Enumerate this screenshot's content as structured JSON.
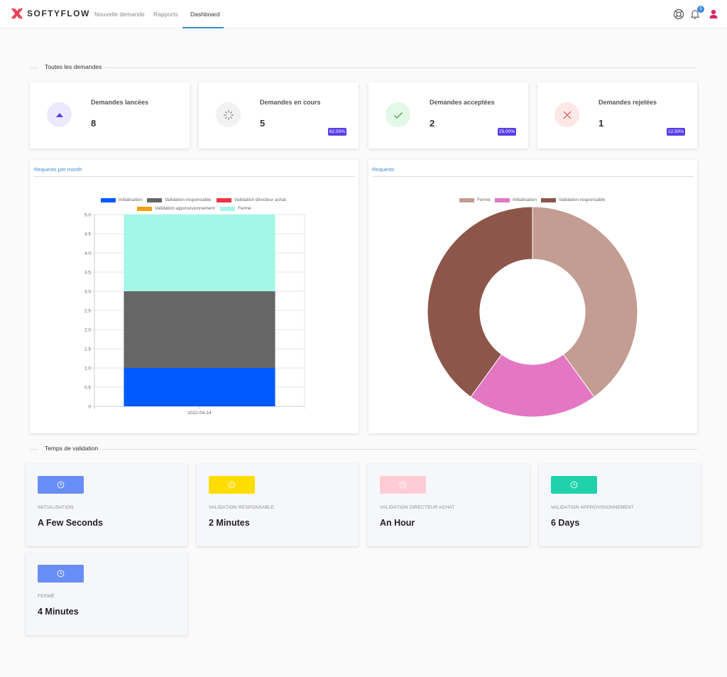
{
  "brand": {
    "name": "SOFTYFLOW"
  },
  "nav": {
    "links": [
      {
        "label": "Nouvelle demande"
      },
      {
        "label": "Rapports"
      },
      {
        "label": "Dashboard"
      }
    ],
    "notifications_count": "5"
  },
  "section_requests": {
    "title": "Toutes les demandes"
  },
  "stats": [
    {
      "label": "Demandes lancées",
      "value": "8",
      "icon": "triangle-up-icon",
      "icon_bg": "#ece9fc",
      "icon_color": "#5b3ee8"
    },
    {
      "label": "Demandes en cours",
      "value": "5",
      "badge": "62.50%",
      "icon": "spinner-icon",
      "icon_bg": "#f2f2f2",
      "icon_color": "#888888"
    },
    {
      "label": "Demandes acceptées",
      "value": "2",
      "badge": "25.00%",
      "icon": "check-icon",
      "icon_bg": "#e3f8e6",
      "icon_color": "#3cae4f"
    },
    {
      "label": "Demandes rejetées",
      "value": "1",
      "badge": "12.50%",
      "icon": "close-icon",
      "icon_bg": "#fde7e7",
      "icon_color": "#e05050"
    }
  ],
  "bar_panel": {
    "tab": "Requests per month"
  },
  "pie_panel": {
    "tab": "Requests"
  },
  "chart_data": [
    {
      "type": "bar",
      "stacked": true,
      "categories": [
        "2022-04-14"
      ],
      "series": [
        {
          "name": "Initialisation",
          "values": [
            1
          ],
          "color": "#0059ff"
        },
        {
          "name": "Validation responsable",
          "values": [
            2
          ],
          "color": "#666666"
        },
        {
          "name": "Validation directeur achat",
          "values": [
            0
          ],
          "color": "#ee3344"
        },
        {
          "name": "Validation approvisionnement",
          "values": [
            0
          ],
          "color": "#f7a10a"
        },
        {
          "name": "Fermé",
          "values": [
            2
          ],
          "color": "#a3f7e6"
        }
      ],
      "yticks": [
        "0",
        "0.5",
        "1.0",
        "1.5",
        "2.0",
        "2.5",
        "3.0",
        "3.5",
        "4.0",
        "4.5",
        "5.0"
      ],
      "ylim": [
        0,
        5
      ],
      "legend": "top",
      "grid": true
    },
    {
      "type": "pie",
      "donut": true,
      "labels": [
        "Fermé",
        "Initialisation",
        "Validation responsable"
      ],
      "values": [
        2,
        1,
        2
      ],
      "colors": [
        "#c39c92",
        "#e377c2",
        "#8c564b"
      ],
      "legend": "top"
    }
  ],
  "section_validation": {
    "title": "Temps de validation"
  },
  "validations": [
    {
      "label": "INITIALISATION",
      "value": "A Few Seconds",
      "color": "#6a8ef8"
    },
    {
      "label": "VALIDATION RESPONSABLE",
      "value": "2 Minutes",
      "color": "#ffdd00"
    },
    {
      "label": "VALIDATION DIRECTEUR ACHAT",
      "value": "An Hour",
      "color": "#ffccd5"
    },
    {
      "label": "VALIDATION APPROVISIONNEMENT",
      "value": "6 Days",
      "color": "#1fd2ac"
    },
    {
      "label": "FERMÉ",
      "value": "4 Minutes",
      "color": "#6a8ef8"
    }
  ]
}
